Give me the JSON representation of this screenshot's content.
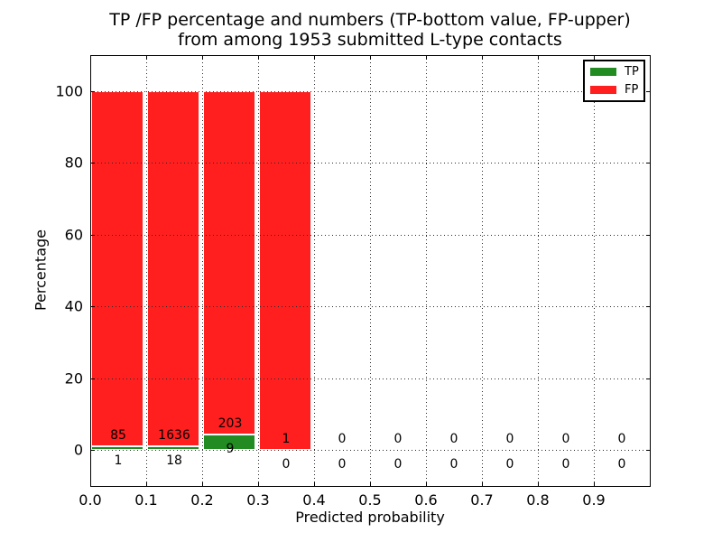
{
  "figure": {
    "title_line1": "TP /FP percentage and numbers (TP-bottom value, FP-upper)",
    "title_line2": "from among 1953 submitted L-type contacts",
    "xlabel": "Predicted probability",
    "ylabel": "Percentage"
  },
  "legend": {
    "position": "upper right",
    "items": [
      {
        "label": "TP",
        "color": "#228b22"
      },
      {
        "label": "FP",
        "color": "#ff1f1f"
      }
    ]
  },
  "chart_data": {
    "type": "bar",
    "stacked": true,
    "title": "TP /FP percentage and numbers (TP-bottom value, FP-upper) from among 1953 submitted L-type contacts",
    "xlabel": "Predicted probability",
    "ylabel": "Percentage",
    "total_submitted_contacts": 1953,
    "xlim": [
      0.0,
      1.0
    ],
    "ylim": [
      -10,
      110
    ],
    "grid": true,
    "grid_style": "dotted",
    "xticks": [
      0.0,
      0.1,
      0.2,
      0.3,
      0.4,
      0.5,
      0.6,
      0.7,
      0.8,
      0.9
    ],
    "yticks": [
      0,
      20,
      40,
      60,
      80,
      100
    ],
    "bins": [
      0.0,
      0.1,
      0.2,
      0.3,
      0.4,
      0.5,
      0.6,
      0.7,
      0.8,
      0.9
    ],
    "bin_width": 0.1,
    "series": [
      {
        "name": "TP",
        "color": "#228b22",
        "counts": [
          1,
          18,
          9,
          0,
          0,
          0,
          0,
          0,
          0,
          0
        ],
        "pct": [
          1.16,
          1.09,
          4.25,
          0,
          0,
          0,
          0,
          0,
          0,
          0
        ]
      },
      {
        "name": "FP",
        "color": "#ff1f1f",
        "counts": [
          85,
          1636,
          203,
          1,
          0,
          0,
          0,
          0,
          0,
          0
        ],
        "pct": [
          98.84,
          98.91,
          95.75,
          100,
          0,
          0,
          0,
          0,
          0,
          0
        ]
      }
    ]
  }
}
